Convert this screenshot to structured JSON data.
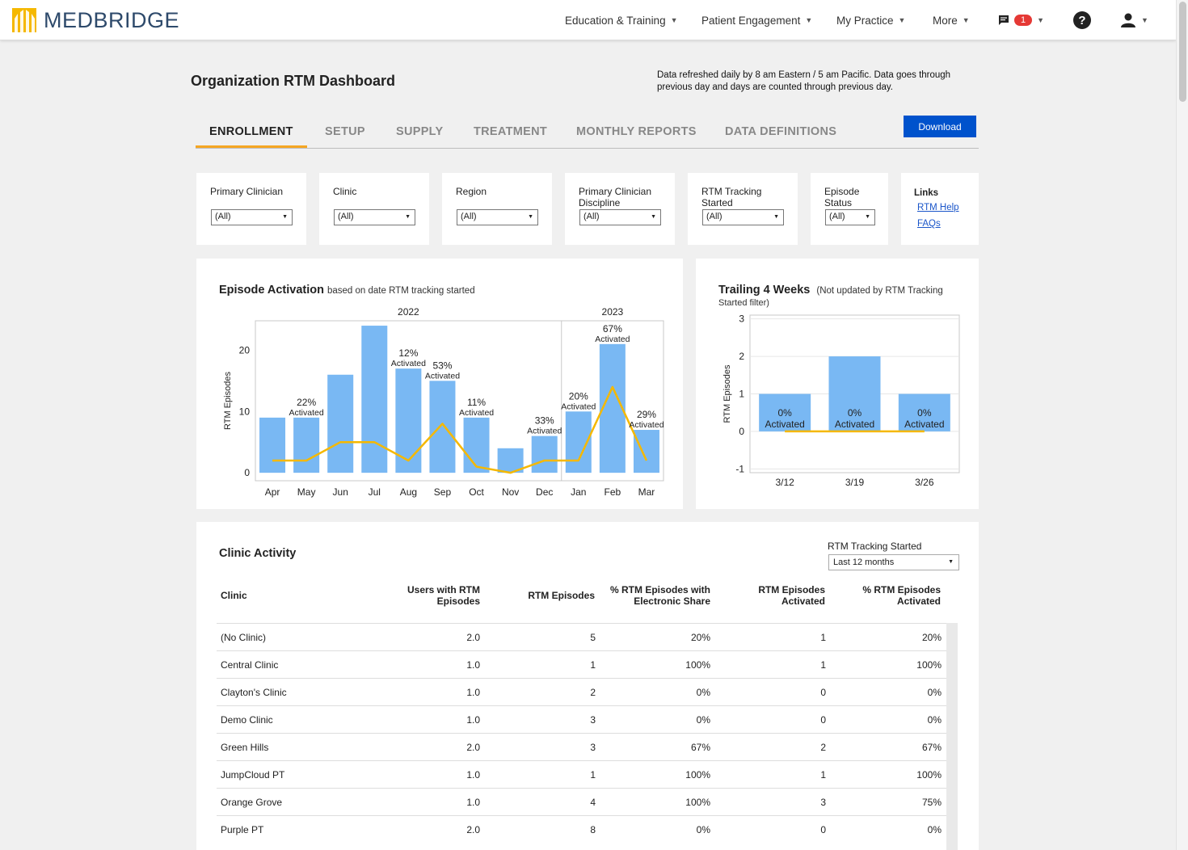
{
  "brand": {
    "name": "MEDBRIDGE"
  },
  "nav": {
    "items": [
      {
        "label": "Education & Training"
      },
      {
        "label": "Patient Engagement"
      },
      {
        "label": "My Practice"
      },
      {
        "label": "More"
      }
    ],
    "messages_count": "1",
    "help_glyph": "?"
  },
  "page": {
    "title": "Organization RTM Dashboard",
    "refresh_note": "Data refreshed daily by 8 am Eastern / 5 am Pacific. Data goes through previous day and days are counted through previous day."
  },
  "tabs": [
    "ENROLLMENT",
    "SETUP",
    "SUPPLY",
    "TREATMENT",
    "MONTHLY REPORTS",
    "DATA DEFINITIONS"
  ],
  "active_tab": "ENROLLMENT",
  "download_label": "Download",
  "filters": [
    {
      "label": "Primary Clinician",
      "value": "(All)"
    },
    {
      "label": "Clinic",
      "value": "(All)"
    },
    {
      "label": "Region",
      "value": "(All)"
    },
    {
      "label": "Primary Clinician Discipline",
      "value": "(All)"
    },
    {
      "label": "RTM Tracking Started",
      "value": "(All)"
    },
    {
      "label": "Episode Status",
      "value": "(All)"
    }
  ],
  "links": {
    "title": "Links",
    "items": [
      "RTM Help",
      "FAQs"
    ]
  },
  "episode_activation": {
    "title": "Episode Activation",
    "subtitle": "based on date RTM tracking started",
    "chart_data": {
      "type": "bar",
      "title": "Episode Activation",
      "ylabel": "RTM Episodes",
      "ylim": [
        -1.3,
        24.8
      ],
      "yticks": [
        0,
        10,
        20
      ],
      "year_groups": [
        {
          "label": "2022",
          "months": 9
        },
        {
          "label": "2023",
          "months": 3
        }
      ],
      "categories": [
        "Apr",
        "May",
        "Jun",
        "Jul",
        "Aug",
        "Sep",
        "Oct",
        "Nov",
        "Dec",
        "Jan",
        "Feb",
        "Mar"
      ],
      "series": [
        {
          "type": "bar",
          "values": [
            9,
            9,
            16,
            24,
            17,
            15,
            9,
            4,
            6,
            10,
            21,
            7
          ]
        },
        {
          "type": "line",
          "values": [
            2,
            2,
            5,
            5,
            2,
            8,
            1,
            0,
            2,
            2,
            14,
            2
          ]
        }
      ],
      "data_labels": [
        "",
        "22%",
        "",
        "",
        "12%",
        "53%",
        "11%",
        "",
        "33%",
        "20%",
        "67%",
        "29%"
      ],
      "data_label_suffix": "Activated",
      "bar_color": "#79b8f3",
      "line_color": "#f5b800",
      "grid": false
    }
  },
  "trailing": {
    "title": "Trailing 4 Weeks",
    "subtitle_line1": "(Not updated by RTM Tracking",
    "subtitle_line2": "Started filter)",
    "chart_data": {
      "type": "bar",
      "title": "Trailing 4 Weeks",
      "ylabel": "RTM Episodes",
      "ylim": [
        -1.1,
        3.1
      ],
      "yticks": [
        -1,
        0,
        1,
        2,
        3
      ],
      "categories": [
        "3/12",
        "3/19",
        "3/26"
      ],
      "series": [
        {
          "type": "bar",
          "values": [
            1,
            2,
            1
          ]
        },
        {
          "type": "line",
          "values": [
            0,
            0,
            0
          ]
        }
      ],
      "data_labels": [
        "0%",
        "0%",
        "0%"
      ],
      "data_label_suffix": "Activated",
      "bar_color": "#79b8f3",
      "line_color": "#f5b800",
      "grid": true
    }
  },
  "clinic_activity": {
    "title": "Clinic Activity",
    "filter_label": "RTM Tracking Started",
    "filter_value": "Last 12 months",
    "columns": [
      {
        "l1": "",
        "l2": "Clinic"
      },
      {
        "l1": "Users with RTM",
        "l2": "Episodes"
      },
      {
        "l1": "",
        "l2": "RTM Episodes"
      },
      {
        "l1": "% RTM Episodes with",
        "l2": "Electronic Share"
      },
      {
        "l1": "RTM Episodes",
        "l2": "Activated"
      },
      {
        "l1": "% RTM Episodes",
        "l2": "Activated"
      }
    ],
    "rows": [
      [
        "(No Clinic)",
        "2.0",
        "5",
        "20%",
        "1",
        "20%"
      ],
      [
        "Central Clinic",
        "1.0",
        "1",
        "100%",
        "1",
        "100%"
      ],
      [
        "Clayton's Clinic",
        "1.0",
        "2",
        "0%",
        "0",
        "0%"
      ],
      [
        "Demo Clinic",
        "1.0",
        "3",
        "0%",
        "0",
        "0%"
      ],
      [
        "Green Hills",
        "2.0",
        "3",
        "67%",
        "2",
        "67%"
      ],
      [
        "JumpCloud PT",
        "1.0",
        "1",
        "100%",
        "1",
        "100%"
      ],
      [
        "Orange Grove",
        "1.0",
        "4",
        "100%",
        "3",
        "75%"
      ],
      [
        "Purple PT",
        "2.0",
        "8",
        "0%",
        "0",
        "0%"
      ]
    ]
  }
}
